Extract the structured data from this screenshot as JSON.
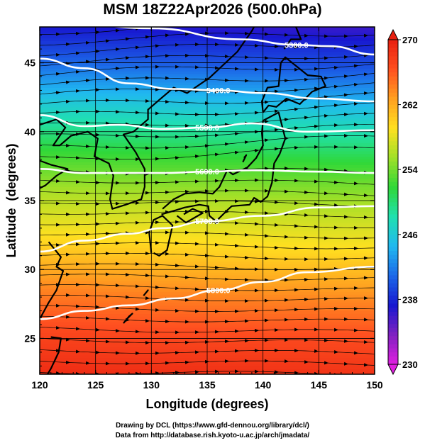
{
  "title": "MSM 18Z22Apr2026 (500.0hPa)",
  "credits": {
    "line1": "Drawing by DCL (https://www.gfd-dennou.org/library/dcl/)",
    "line2": "Data from http://database.rish.kyoto-u.ac.jp/arch/jmadata/"
  },
  "chart_data": {
    "type": "heatmap",
    "title": "MSM 18Z22Apr2026 (500.0hPa)",
    "xlabel": "Longitude (degrees)",
    "ylabel": "Latitude  (degrees)",
    "xlim": [
      120,
      150
    ],
    "ylim": [
      22.4,
      47.6
    ],
    "xticks": [
      120,
      125,
      130,
      135,
      140,
      145,
      150
    ],
    "yticks": [
      25,
      30,
      35,
      40,
      45
    ],
    "grid": true,
    "colorbar": {
      "min": 230,
      "max": 270,
      "ticks": [
        230,
        238,
        246,
        254,
        262,
        270
      ],
      "colors": [
        "#e020e0",
        "#8020c0",
        "#1818d0",
        "#1c68e8",
        "#20b8f0",
        "#20e0b0",
        "#30d838",
        "#a0e028",
        "#ffe020",
        "#ffa020",
        "#ff5020",
        "#e82010"
      ]
    },
    "temperature_field": [
      {
        "lat": 48,
        "value": 236
      },
      {
        "lat": 45,
        "value": 240
      },
      {
        "lat": 41,
        "value": 247
      },
      {
        "lat": 38,
        "value": 252
      },
      {
        "lat": 35,
        "value": 256
      },
      {
        "lat": 32,
        "value": 259
      },
      {
        "lat": 28,
        "value": 264
      },
      {
        "lat": 25,
        "value": 267
      },
      {
        "lat": 22,
        "value": 269
      }
    ],
    "height_contours": [
      {
        "label": "5300.0",
        "points": [
          [
            120,
            48.2
          ],
          [
            130,
            47.5
          ],
          [
            138,
            46.7
          ],
          [
            143,
            46.3
          ],
          [
            146,
            46.2
          ],
          [
            150,
            45.6
          ]
        ]
      },
      {
        "label": "5400.0",
        "points": [
          [
            120,
            45.3
          ],
          [
            124,
            44.6
          ],
          [
            128,
            43.5
          ],
          [
            132,
            43.1
          ],
          [
            136,
            43.0
          ],
          [
            140,
            42.8
          ],
          [
            145,
            42.4
          ],
          [
            150,
            42.2
          ]
        ]
      },
      {
        "label": "5500.0",
        "points": [
          [
            120,
            41.2
          ],
          [
            124,
            40.4
          ],
          [
            127,
            40.5
          ],
          [
            131,
            40.2
          ],
          [
            135,
            40.3
          ],
          [
            139,
            40.6
          ],
          [
            144,
            40.0
          ],
          [
            150,
            40.1
          ]
        ]
      },
      {
        "label": "5600.0",
        "points": [
          [
            120,
            37.3
          ],
          [
            124,
            37.0
          ],
          [
            127,
            37.0
          ],
          [
            131,
            37.0
          ],
          [
            135,
            37.1
          ],
          [
            139,
            37.2
          ],
          [
            145,
            37.1
          ],
          [
            150,
            37.0
          ]
        ]
      },
      {
        "label": "5700.0",
        "points": [
          [
            120,
            31.3
          ],
          [
            124,
            32.1
          ],
          [
            128,
            32.6
          ],
          [
            131,
            33.0
          ],
          [
            135,
            33.5
          ],
          [
            140,
            33.9
          ],
          [
            145,
            34.5
          ],
          [
            150,
            34.6
          ]
        ]
      },
      {
        "label": "5800.0",
        "points": [
          [
            120,
            26.4
          ],
          [
            124,
            27.0
          ],
          [
            128,
            27.4
          ],
          [
            132,
            27.9
          ],
          [
            136,
            28.5
          ],
          [
            140,
            29.1
          ],
          [
            144,
            29.8
          ],
          [
            150,
            30.2
          ]
        ]
      }
    ]
  }
}
